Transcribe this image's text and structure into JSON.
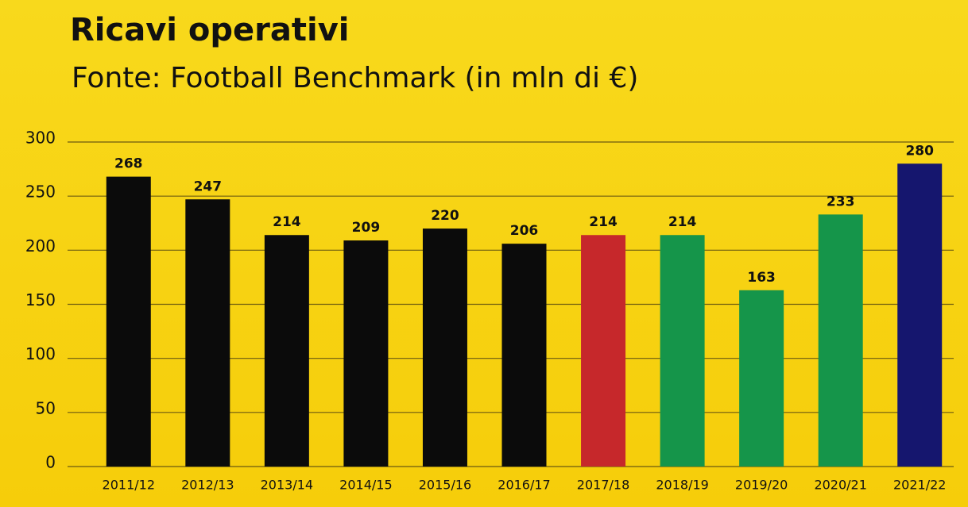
{
  "chart_data": {
    "type": "bar",
    "title": "Ricavi operativi",
    "subtitle": "Fonte: Football Benchmark (in mln di €)",
    "categories": [
      "2011/12",
      "2012/13",
      "2013/14",
      "2014/15",
      "2015/16",
      "2016/17",
      "2017/18",
      "2018/19",
      "2019/20",
      "2020/21",
      "2021/22"
    ],
    "values": [
      268,
      247,
      214,
      209,
      220,
      206,
      214,
      214,
      163,
      233,
      280
    ],
    "colors": [
      "#0b0b0b",
      "#0b0b0b",
      "#0b0b0b",
      "#0b0b0b",
      "#0b0b0b",
      "#0b0b0b",
      "#c6282b",
      "#15954a",
      "#15954a",
      "#15954a",
      "#15166e"
    ],
    "ylim": [
      0,
      300
    ],
    "yticks": [
      0,
      50,
      100,
      150,
      200,
      250,
      300
    ],
    "grid": true
  }
}
